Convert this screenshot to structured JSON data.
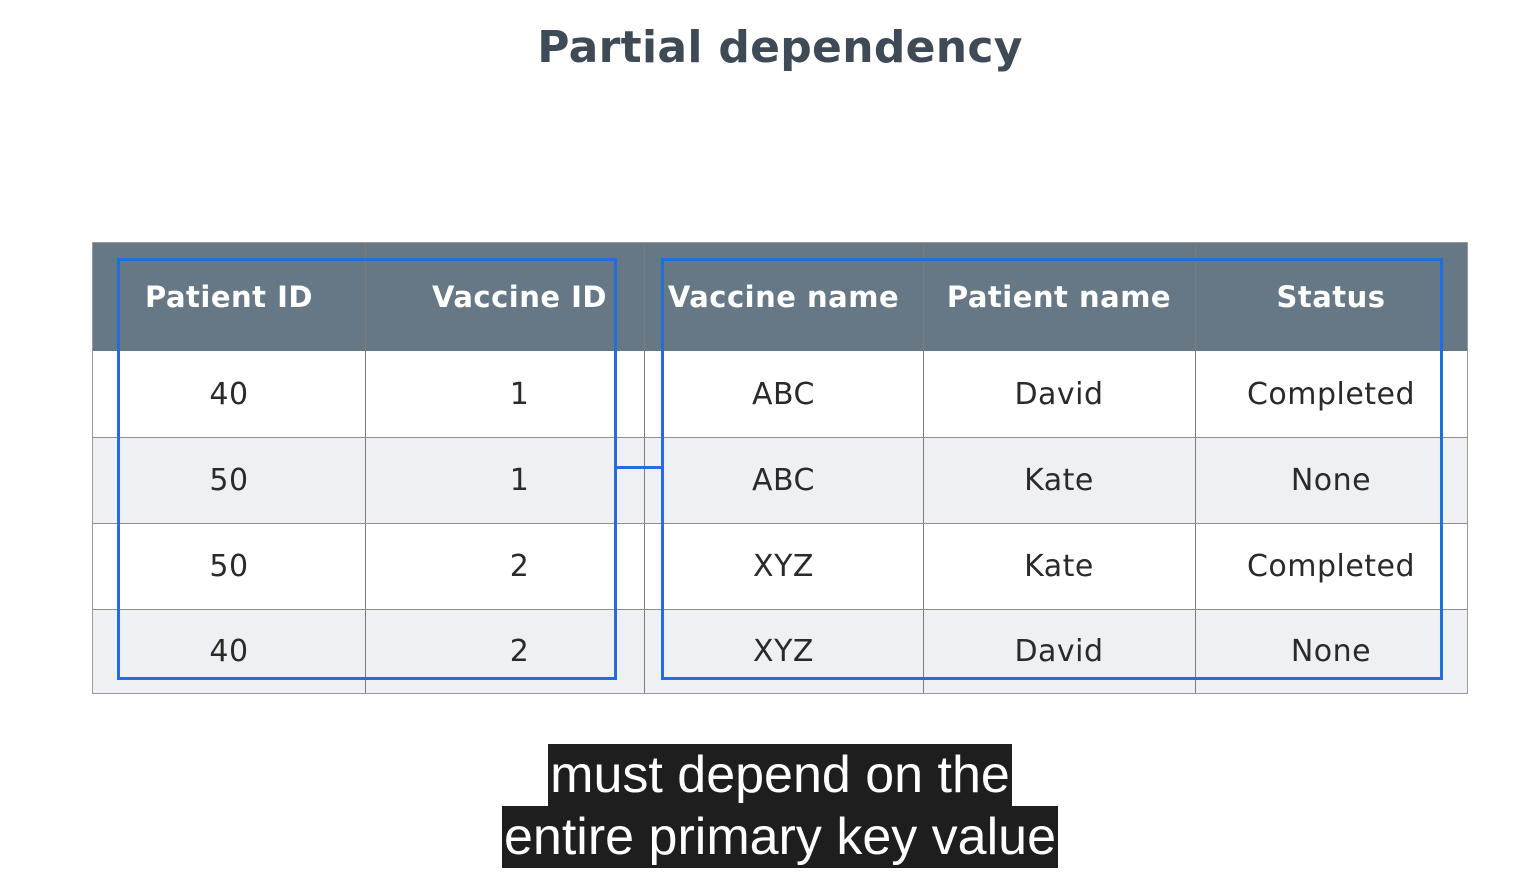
{
  "title": "Partial dependency",
  "table": {
    "headers": [
      "Patient ID",
      "Vaccine ID",
      "Vaccine name",
      "Patient name",
      "Status"
    ],
    "rows": [
      [
        "40",
        "1",
        "ABC",
        "David",
        "Completed"
      ],
      [
        "50",
        "1",
        "ABC",
        "Kate",
        "None"
      ],
      [
        "50",
        "2",
        "XYZ",
        "Kate",
        "Completed"
      ],
      [
        "40",
        "2",
        "XYZ",
        "David",
        "None"
      ]
    ]
  },
  "highlight_color": "#1f6fe0",
  "header_color": "#667786",
  "captions": [
    "must depend on the",
    "entire primary key value"
  ]
}
